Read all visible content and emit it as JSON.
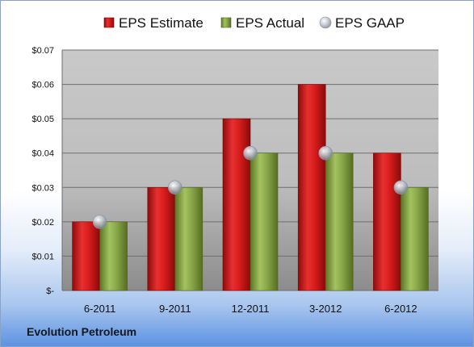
{
  "chart_data": {
    "type": "bar",
    "categories": [
      "6-2011",
      "9-2011",
      "12-2011",
      "3-2012",
      "6-2012"
    ],
    "series": [
      {
        "name": "EPS Estimate",
        "color": "#d21a1a",
        "values": [
          0.02,
          0.03,
          0.05,
          0.06,
          0.04
        ]
      },
      {
        "name": "EPS Actual",
        "color": "#8caa4a",
        "values": [
          0.02,
          0.03,
          0.04,
          0.04,
          0.03
        ]
      },
      {
        "name": "EPS GAAP",
        "color": "#b8c0cc",
        "marker": "sphere",
        "values": [
          0.02,
          0.03,
          0.04,
          0.04,
          0.03
        ]
      }
    ],
    "ylim": [
      0,
      0.07
    ],
    "yticks": [
      0,
      0.01,
      0.02,
      0.03,
      0.04,
      0.05,
      0.06,
      0.07
    ],
    "ytick_labels": [
      "$-",
      "$0.01",
      "$0.02",
      "$0.03",
      "$0.04",
      "$0.05",
      "$0.06",
      "$0.07"
    ],
    "grid": true,
    "legend_position": "top"
  },
  "footer": {
    "company": "Evolution Petroleum"
  }
}
